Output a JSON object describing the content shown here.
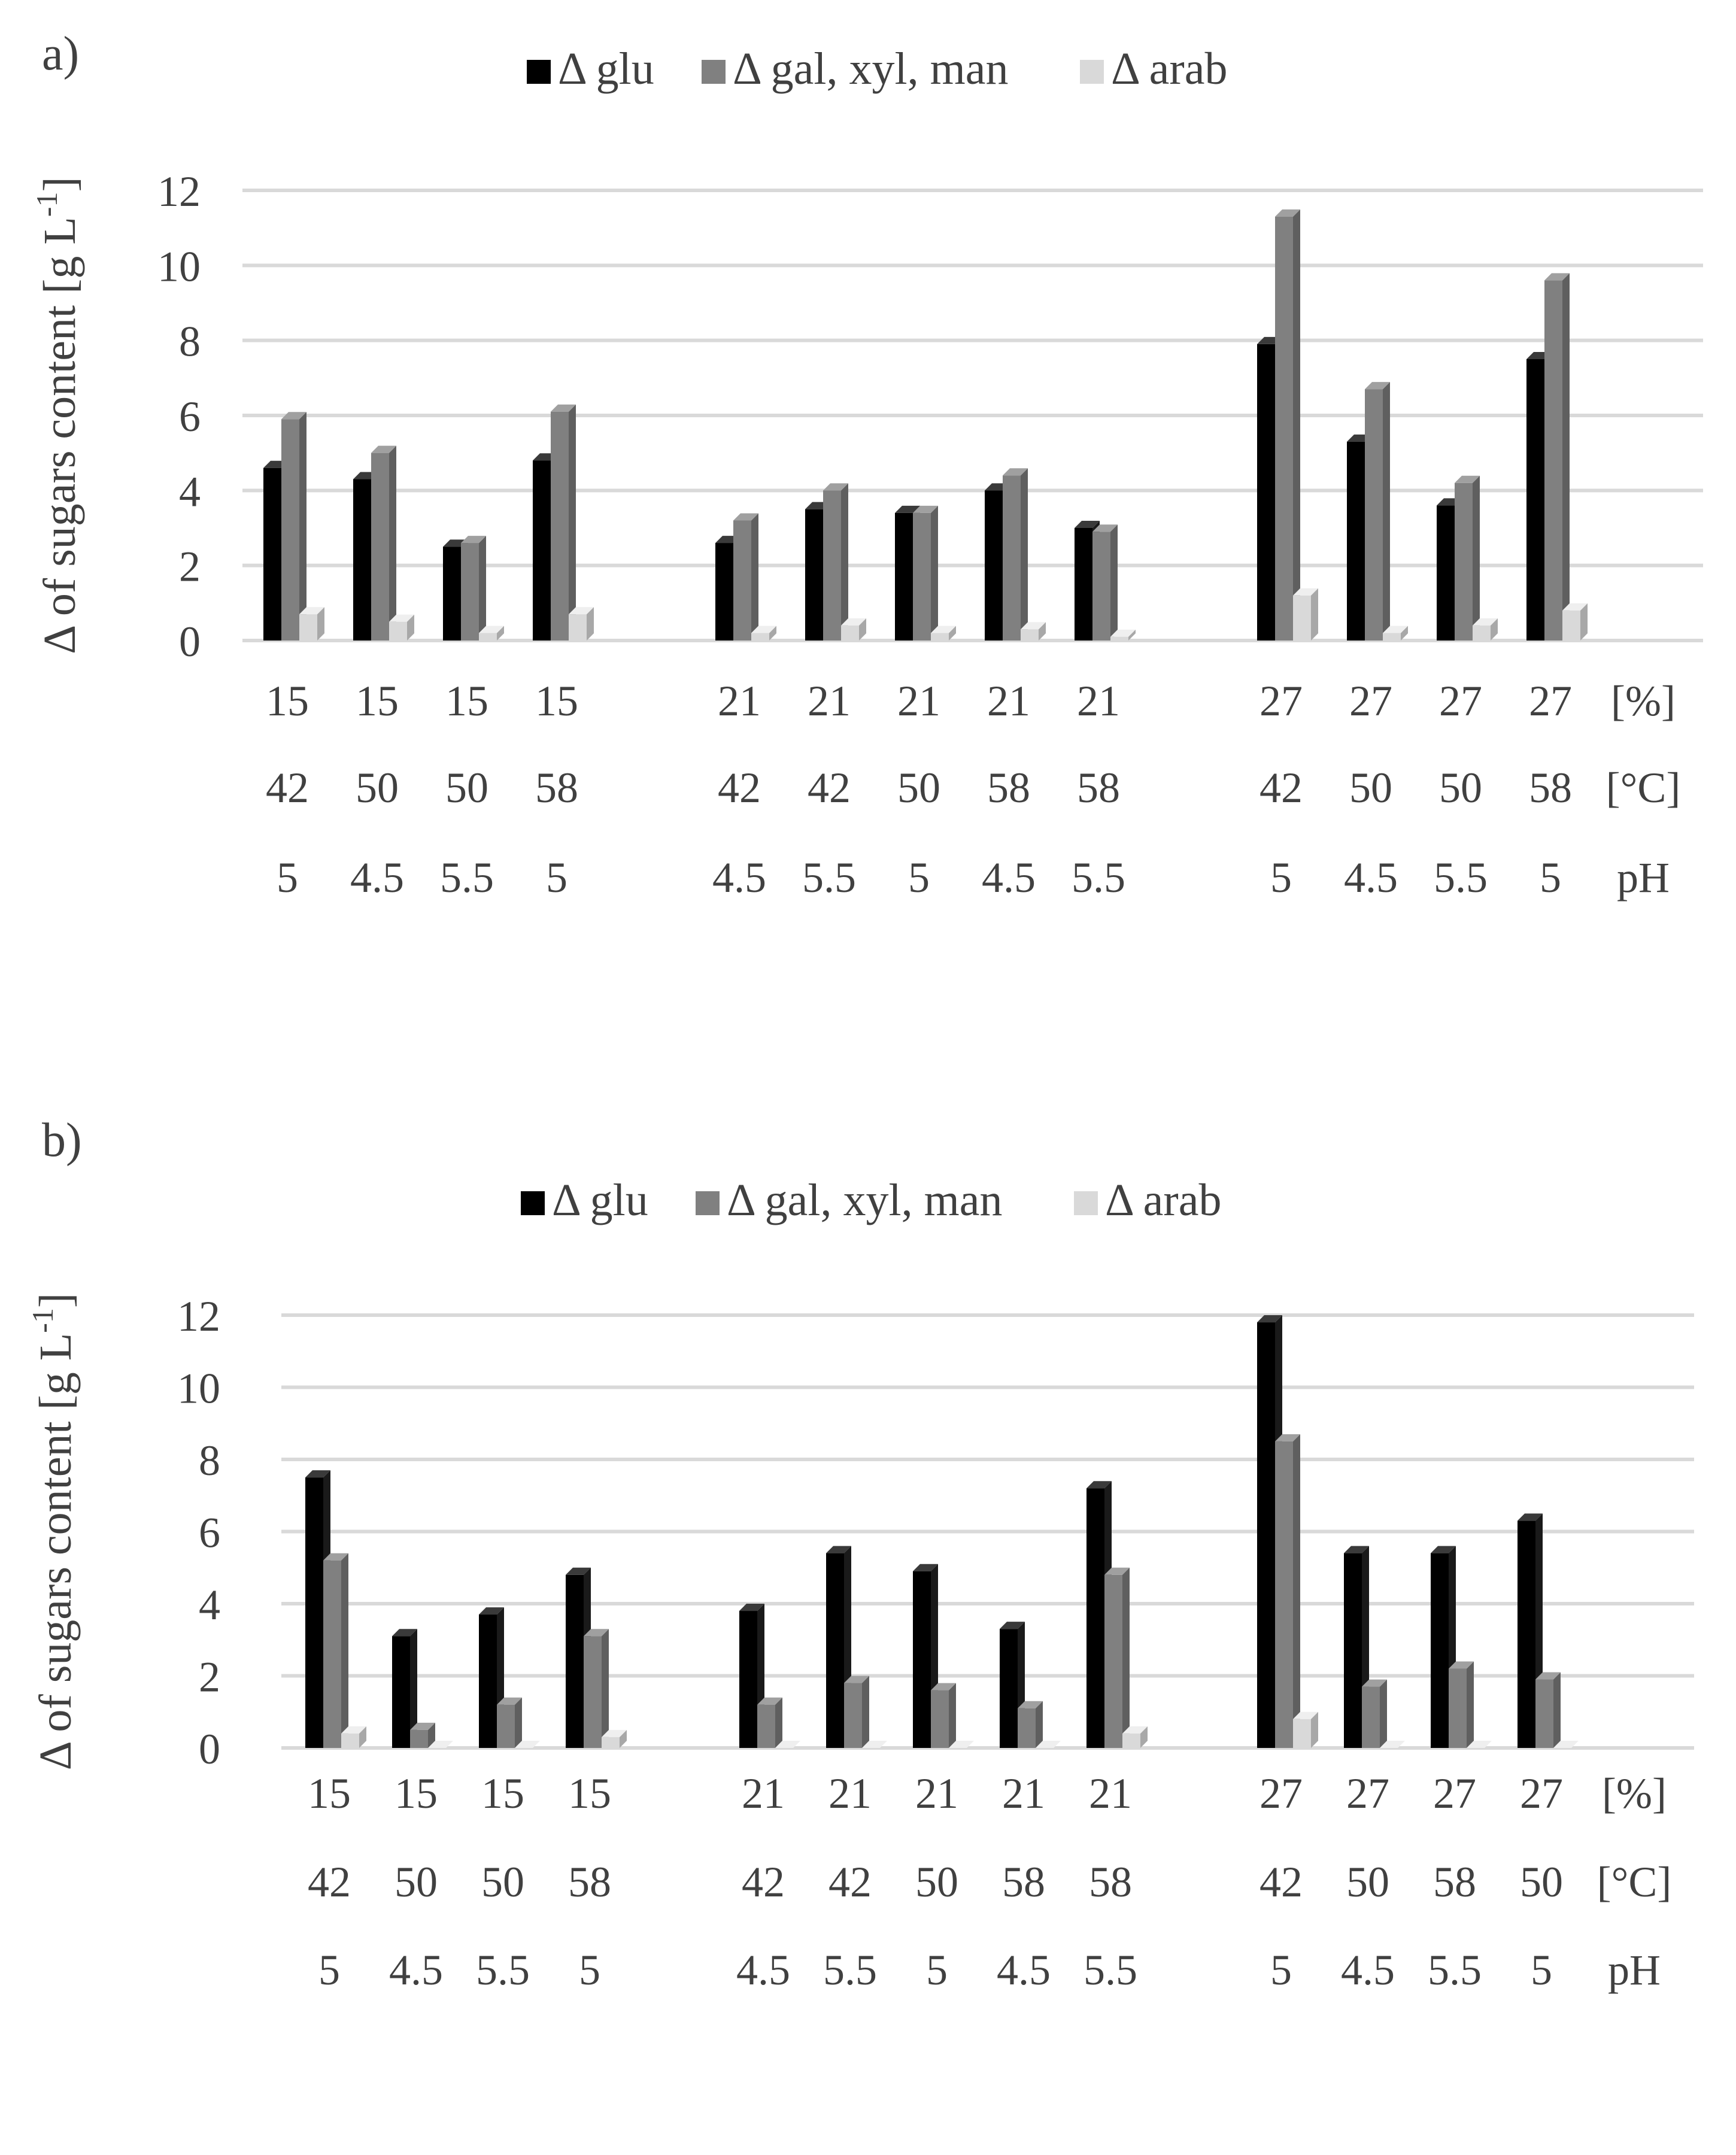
{
  "panels": [
    {
      "label": "a)",
      "chart_data": {
        "type": "bar",
        "title": "",
        "ylabel": "Δ of sugars content [g L-1]",
        "ylim": [
          0,
          12
        ],
        "yticks": [
          0,
          2,
          4,
          6,
          8,
          10,
          12
        ],
        "legend": [
          "Δ glu",
          "Δ gal, xyl, man",
          "Δ arab"
        ],
        "legend_position": "top",
        "row_labels": [
          "[%]",
          "[°C]",
          "pH"
        ],
        "groups": [
          [
            {
              "percent": "15",
              "temp": "42",
              "ph": "5",
              "values": [
                4.6,
                5.9,
                0.7
              ]
            },
            {
              "percent": "15",
              "temp": "50",
              "ph": "4.5",
              "values": [
                4.3,
                5.0,
                0.5
              ]
            },
            {
              "percent": "15",
              "temp": "50",
              "ph": "5.5",
              "values": [
                2.5,
                2.6,
                0.2
              ]
            },
            {
              "percent": "15",
              "temp": "58",
              "ph": "5",
              "values": [
                4.8,
                6.1,
                0.7
              ]
            }
          ],
          [
            {
              "percent": "21",
              "temp": "42",
              "ph": "4.5",
              "values": [
                2.6,
                3.2,
                0.2
              ]
            },
            {
              "percent": "21",
              "temp": "42",
              "ph": "5.5",
              "values": [
                3.5,
                4.0,
                0.4
              ]
            },
            {
              "percent": "21",
              "temp": "50",
              "ph": "5",
              "values": [
                3.4,
                3.4,
                0.2
              ]
            },
            {
              "percent": "21",
              "temp": "58",
              "ph": "4.5",
              "values": [
                4.0,
                4.4,
                0.3
              ]
            },
            {
              "percent": "21",
              "temp": "58",
              "ph": "5.5",
              "values": [
                3.0,
                2.9,
                0.1
              ]
            }
          ],
          [
            {
              "percent": "27",
              "temp": "42",
              "ph": "5",
              "values": [
                7.9,
                11.3,
                1.2
              ]
            },
            {
              "percent": "27",
              "temp": "50",
              "ph": "4.5",
              "values": [
                5.3,
                6.7,
                0.2
              ]
            },
            {
              "percent": "27",
              "temp": "50",
              "ph": "5.5",
              "values": [
                3.6,
                4.2,
                0.4
              ]
            },
            {
              "percent": "27",
              "temp": "58",
              "ph": "5",
              "values": [
                7.5,
                9.6,
                0.8
              ]
            }
          ]
        ]
      }
    },
    {
      "label": "b)",
      "chart_data": {
        "type": "bar",
        "title": "",
        "ylabel": "Δ of sugars content [g L-1]",
        "ylim": [
          0,
          12
        ],
        "yticks": [
          0,
          2,
          4,
          6,
          8,
          10,
          12
        ],
        "legend": [
          "Δ glu",
          "Δ gal, xyl, man",
          "Δ arab"
        ],
        "legend_position": "top",
        "row_labels": [
          "[%]",
          "[°C]",
          "pH"
        ],
        "groups": [
          [
            {
              "percent": "15",
              "temp": "42",
              "ph": "5",
              "values": [
                7.5,
                5.2,
                0.4
              ]
            },
            {
              "percent": "15",
              "temp": "50",
              "ph": "4.5",
              "values": [
                3.1,
                0.5,
                0.0
              ]
            },
            {
              "percent": "15",
              "temp": "50",
              "ph": "5.5",
              "values": [
                3.7,
                1.2,
                0.0
              ]
            },
            {
              "percent": "15",
              "temp": "58",
              "ph": "5",
              "values": [
                4.8,
                3.1,
                0.3
              ]
            }
          ],
          [
            {
              "percent": "21",
              "temp": "42",
              "ph": "4.5",
              "values": [
                3.8,
                1.2,
                0.0
              ]
            },
            {
              "percent": "21",
              "temp": "42",
              "ph": "5.5",
              "values": [
                5.4,
                1.8,
                0.0
              ]
            },
            {
              "percent": "21",
              "temp": "50",
              "ph": "5",
              "values": [
                4.9,
                1.6,
                0.0
              ]
            },
            {
              "percent": "21",
              "temp": "58",
              "ph": "4.5",
              "values": [
                3.3,
                1.1,
                0.0
              ]
            },
            {
              "percent": "21",
              "temp": "58",
              "ph": "5.5",
              "values": [
                7.2,
                4.8,
                0.4
              ]
            }
          ],
          [
            {
              "percent": "27",
              "temp": "42",
              "ph": "5",
              "values": [
                11.8,
                8.5,
                0.8
              ]
            },
            {
              "percent": "27",
              "temp": "50",
              "ph": "4.5",
              "values": [
                5.4,
                1.7,
                0.0
              ]
            },
            {
              "percent": "27",
              "temp": "58",
              "ph": "5.5",
              "values": [
                5.4,
                2.2,
                0.0
              ]
            },
            {
              "percent": "27",
              "temp": "50",
              "ph": "5",
              "values": [
                6.3,
                1.9,
                0.0
              ]
            }
          ]
        ]
      }
    }
  ],
  "colors": {
    "series": [
      "#000000",
      "#808080",
      "#d9d9d9"
    ],
    "grid": "#d9d9d9",
    "text": "#404040"
  }
}
